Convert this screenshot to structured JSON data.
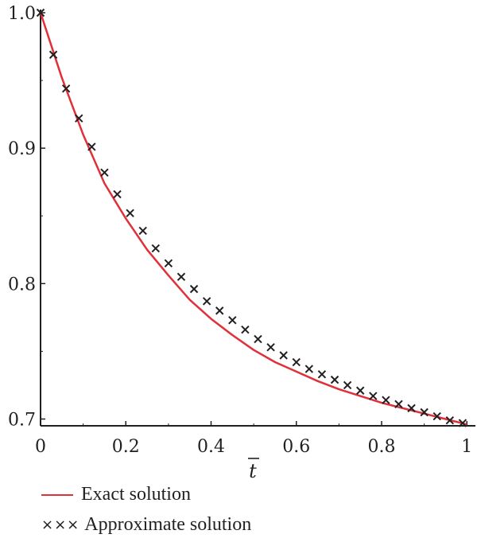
{
  "chart_data": {
    "type": "line",
    "title": "",
    "xlabel": "t̄",
    "ylabel": "",
    "xlim": [
      0,
      1.02
    ],
    "ylim": [
      0.695,
      1.0
    ],
    "x_ticks": [
      0,
      0.2,
      0.4,
      0.6,
      0.8,
      1
    ],
    "x_tick_labels": [
      "0",
      "0.2",
      "0.4",
      "0.6",
      "0.8",
      "1"
    ],
    "y_ticks": [
      0.7,
      0.8,
      0.9,
      1.0
    ],
    "y_tick_labels": [
      "0.7",
      "0.8",
      "0.9",
      "1.0"
    ],
    "series": [
      {
        "name": "Exact solution",
        "style": "line",
        "color": "#e0303a",
        "x": [
          0,
          0.05,
          0.1,
          0.15,
          0.2,
          0.25,
          0.3,
          0.35,
          0.4,
          0.45,
          0.5,
          0.55,
          0.6,
          0.65,
          0.7,
          0.75,
          0.8,
          0.85,
          0.9,
          0.95,
          1.0
        ],
        "y": [
          1.0,
          0.952,
          0.91,
          0.874,
          0.848,
          0.825,
          0.806,
          0.788,
          0.774,
          0.762,
          0.751,
          0.742,
          0.735,
          0.728,
          0.722,
          0.717,
          0.712,
          0.708,
          0.704,
          0.7,
          0.696
        ]
      },
      {
        "name": "Approximate solution",
        "style": "markers",
        "marker": "x",
        "color": "#231f20",
        "x": [
          0,
          0.03,
          0.06,
          0.09,
          0.12,
          0.15,
          0.18,
          0.21,
          0.24,
          0.27,
          0.3,
          0.33,
          0.36,
          0.39,
          0.42,
          0.45,
          0.48,
          0.51,
          0.54,
          0.57,
          0.6,
          0.63,
          0.66,
          0.69,
          0.72,
          0.75,
          0.78,
          0.81,
          0.84,
          0.87,
          0.9,
          0.93,
          0.96,
          0.99
        ],
        "y": [
          1.0,
          0.969,
          0.944,
          0.922,
          0.901,
          0.882,
          0.866,
          0.852,
          0.839,
          0.826,
          0.815,
          0.805,
          0.796,
          0.787,
          0.78,
          0.773,
          0.766,
          0.759,
          0.753,
          0.747,
          0.742,
          0.737,
          0.733,
          0.729,
          0.725,
          0.721,
          0.717,
          0.714,
          0.711,
          0.708,
          0.705,
          0.702,
          0.699,
          0.697
        ]
      }
    ],
    "legend_position": "bottom-left"
  },
  "legend": {
    "exact_label": "Exact solution",
    "approx_label": "Approximate solution",
    "approx_marks": "×××"
  }
}
